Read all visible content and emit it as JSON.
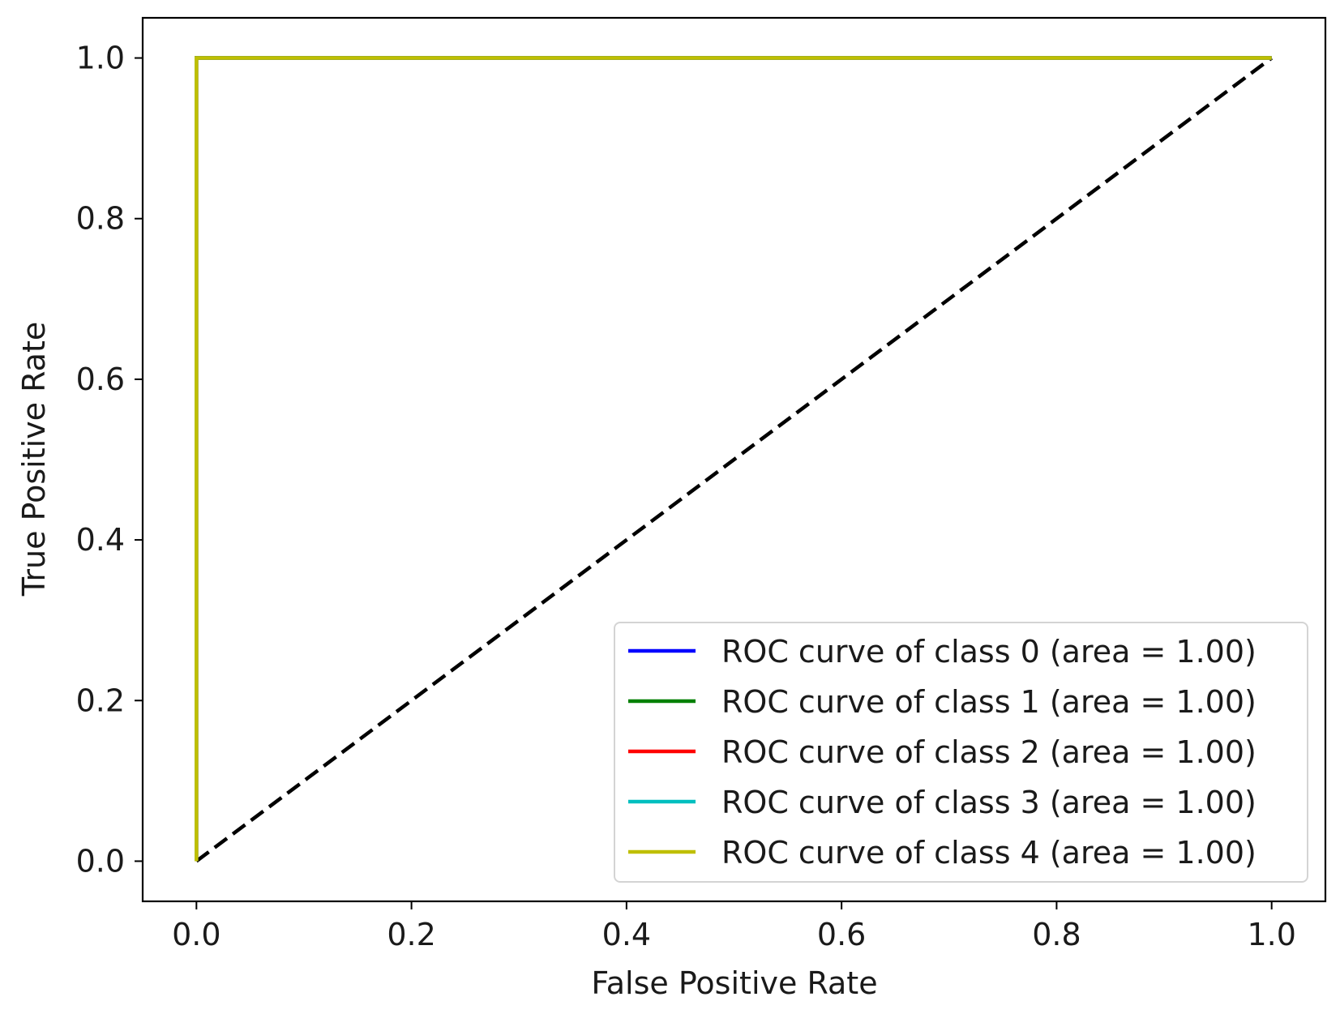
{
  "chart_data": {
    "type": "line",
    "title": "",
    "xlabel": "False Positive Rate",
    "ylabel": "True Positive Rate",
    "xlim": [
      -0.05,
      1.05
    ],
    "ylim": [
      -0.05,
      1.05
    ],
    "xticks": [
      {
        "value": 0.0,
        "label": "0.0"
      },
      {
        "value": 0.2,
        "label": "0.2"
      },
      {
        "value": 0.4,
        "label": "0.4"
      },
      {
        "value": 0.6,
        "label": "0.6"
      },
      {
        "value": 0.8,
        "label": "0.8"
      },
      {
        "value": 1.0,
        "label": "1.0"
      }
    ],
    "yticks": [
      {
        "value": 0.0,
        "label": "0.0"
      },
      {
        "value": 0.2,
        "label": "0.2"
      },
      {
        "value": 0.4,
        "label": "0.4"
      },
      {
        "value": 0.6,
        "label": "0.6"
      },
      {
        "value": 0.8,
        "label": "0.8"
      },
      {
        "value": 1.0,
        "label": "1.0"
      }
    ],
    "grid": false,
    "legend_position": "lower-right",
    "series": [
      {
        "name": "ROC curve of class 0 (area = 1.00)",
        "color": "#0000ff",
        "x": [
          0.0,
          0.0,
          1.0
        ],
        "y": [
          0.0,
          1.0,
          1.0
        ]
      },
      {
        "name": "ROC curve of class 1 (area = 1.00)",
        "color": "#008000",
        "x": [
          0.0,
          0.0,
          1.0
        ],
        "y": [
          0.0,
          1.0,
          1.0
        ]
      },
      {
        "name": "ROC curve of class 2 (area = 1.00)",
        "color": "#ff0000",
        "x": [
          0.0,
          0.0,
          1.0
        ],
        "y": [
          0.0,
          1.0,
          1.0
        ]
      },
      {
        "name": "ROC curve of class 3 (area = 1.00)",
        "color": "#00bfbf",
        "x": [
          0.0,
          0.0,
          1.0
        ],
        "y": [
          0.0,
          1.0,
          1.0
        ]
      },
      {
        "name": "ROC curve of class 4 (area = 1.00)",
        "color": "#bfbf00",
        "x": [
          0.0,
          0.0,
          1.0
        ],
        "y": [
          0.0,
          1.0,
          1.0
        ]
      }
    ],
    "reference_line": {
      "x": [
        0.0,
        1.0
      ],
      "y": [
        0.0,
        1.0
      ],
      "color": "#000000",
      "style": "dashed"
    }
  }
}
